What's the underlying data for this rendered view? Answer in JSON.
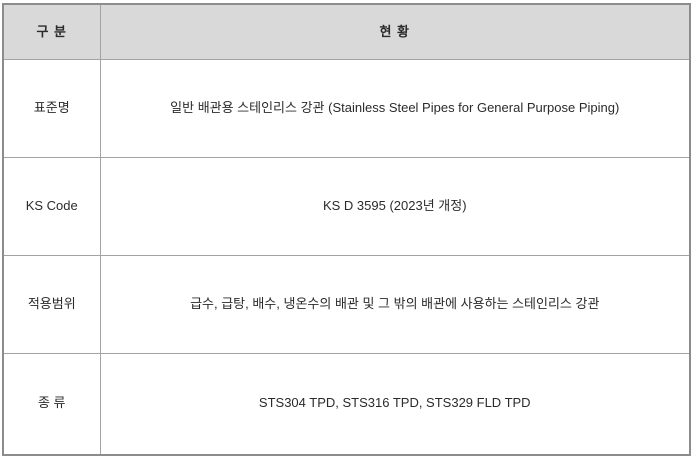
{
  "table": {
    "header": {
      "category_label": "구 분",
      "status_label": "현 황"
    },
    "rows": [
      {
        "label": "표준명",
        "value": "일반 배관용 스테인리스 강관 (Stainless Steel Pipes for General Purpose Piping)"
      },
      {
        "label": "KS Code",
        "value": "KS D 3595 (2023년 개정)"
      },
      {
        "label": "적용범위",
        "value": "급수, 급탕, 배수, 냉온수의 배관 및 그 밖의 배관에 사용하는 스테인리스 강관"
      },
      {
        "label": "종 류",
        "value": "STS304 TPD, STS316 TPD, STS329 FLD TPD"
      }
    ],
    "colors": {
      "header_bg": "#d9d9d9",
      "outer_border": "#8c8c8c",
      "inner_border": "#a3a3a3",
      "text": "#2b2b2b",
      "cell_bg": "#ffffff"
    }
  }
}
